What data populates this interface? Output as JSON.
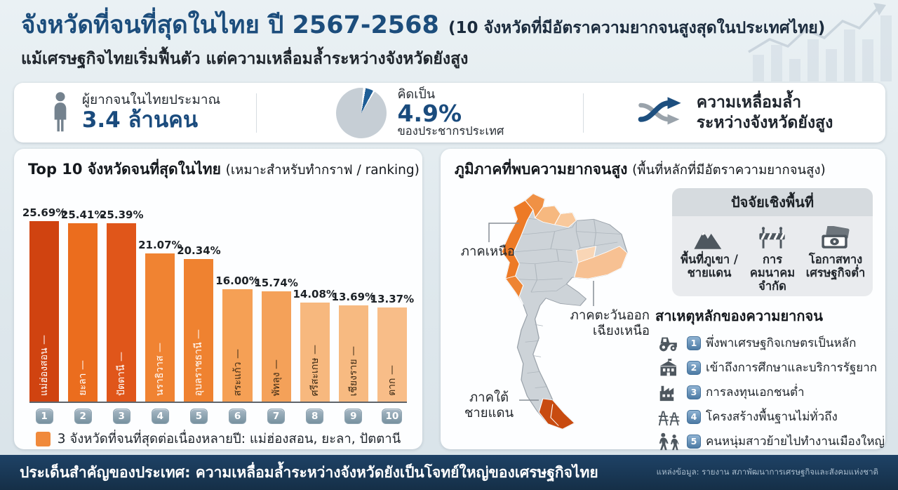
{
  "header": {
    "title_main": "จังหวัดที่จนที่สุดในไทย ปี 2567-2568",
    "title_paren": "(10 จังหวัดที่มีอัตราความยากจนสูงสุดในประเทศไทย)",
    "subtitle": "แม้เศรษฐกิจไทยเริ่มฟื้นตัว แต่ความเหลื่อมล้ำระหว่างจังหวัดยังสูง"
  },
  "stats": {
    "poor": {
      "label": "ผู้ยากจนในไทยประมาณ",
      "value": "3.4 ล้านคน"
    },
    "share": {
      "label": "คิดเป็น",
      "value": "4.9%",
      "sub": "ของประชากรประเทศ"
    },
    "inequality": {
      "line1": "ความเหลื่อมล้ำ",
      "line2": "ระหว่างจังหวัดยังสูง"
    }
  },
  "chart_data": {
    "type": "bar",
    "title": "Top 10 จังหวัดจนที่สุดในไทย",
    "title_note": "(เหมาะสำหรับทำกราฟ / ranking)",
    "categories": [
      "แม่ฮ่องสอน",
      "ยะลา",
      "ปัตตานี",
      "นราธิวาส",
      "อุบลราชธานี",
      "สระแก้ว",
      "พัทลุง",
      "ศรีสะเกษ",
      "เชียงราย",
      "ตาก"
    ],
    "values": [
      25.69,
      25.41,
      25.39,
      21.07,
      20.34,
      16.0,
      15.74,
      14.08,
      13.69,
      13.37
    ],
    "value_suffix": "%",
    "ranks": [
      "1",
      "2",
      "3",
      "4",
      "5",
      "6",
      "7",
      "8",
      "9",
      "10"
    ],
    "bar_colors": [
      "#d04310",
      "#eb6d1e",
      "#e0561a",
      "#f08332",
      "#ef8230",
      "#f5a055",
      "#f4a159",
      "#f7b87e",
      "#f7ba81",
      "#f8bd88"
    ],
    "name_colors": [
      "#ffffff",
      "#ffffff",
      "#ffffff",
      "#ffffff",
      "#ffffff",
      "#3e2b15",
      "#3e2b15",
      "#3e2b15",
      "#3e2b15",
      "#3e2b15"
    ],
    "xlabel": "",
    "ylabel": "",
    "ylim": [
      0,
      27
    ],
    "grid": false,
    "legend_position": "bottom",
    "legend": "3 จังหวัดที่จนที่สุดต่อเนื่องหลายปี: แม่ฮ่องสอน, ยะลา, ปัตตานี"
  },
  "map_panel": {
    "title": "ภูมิภาคที่พบความยากจนสูง",
    "title_note": "(พื้นที่หลักที่มีอัตราความยากจนสูง)",
    "regions": [
      {
        "name": "ภาคเหนือ"
      },
      {
        "name": "ภาคตะวันออก\nเฉียงเหนือ"
      },
      {
        "name": "ภาคใต้\nชายแดน"
      }
    ],
    "factors": {
      "title": "ปัจจัยเชิงพื้นที่",
      "items": [
        {
          "icon": "mountain-icon",
          "label": "พื้นที่ภูเขา /\nชายแดน"
        },
        {
          "icon": "barrier-icon",
          "label": "การคมนาคม\nจำกัด"
        },
        {
          "icon": "banknote-icon",
          "label": "โอกาสทาง\nเศรษฐกิจต่ำ"
        }
      ]
    },
    "causes": {
      "title": "สาเหตุหลักของความยากจน",
      "items": [
        {
          "num": "1",
          "icon": "tractor-icon",
          "text": "พึ่งพาเศรษฐกิจเกษตรเป็นหลัก"
        },
        {
          "num": "2",
          "icon": "school-icon",
          "text": "เข้าถึงการศึกษาและบริการรัฐยาก"
        },
        {
          "num": "3",
          "icon": "factory-icon",
          "text": "การลงทุนเอกชนต่ำ"
        },
        {
          "num": "4",
          "icon": "pylon-icon",
          "text": "โครงสร้างพื้นฐานไม่ทั่วถึง"
        },
        {
          "num": "5",
          "icon": "migration-icon",
          "text": "คนหนุ่มสาวย้ายไปทำงานเมืองใหญ่"
        }
      ]
    }
  },
  "footer": {
    "headline": "ประเด็นสำคัญของประเทศ: ความเหลื่อมล้ำระหว่างจังหวัดยังเป็นโจทย์ใหญ่ของเศรษฐกิจไทย",
    "source": "แหล่งข้อมูล: รายงาน สภาพัฒนาการเศรษฐกิจและสังคมแห่งชาติ"
  },
  "colors": {
    "accent_blue": "#1c4d7c",
    "navy_text": "#1b2b3d",
    "footer_bg": "#17344e",
    "pie_gray": "#c6ced5",
    "pie_blue": "#1f5e96",
    "legend_orange": "#f08a3c",
    "map_base_gray": "#cdd3d8",
    "map_north_orange": "#ed7a26",
    "map_northeast_orange": "#f7c193",
    "map_south_dark_orange": "#c84b10"
  }
}
